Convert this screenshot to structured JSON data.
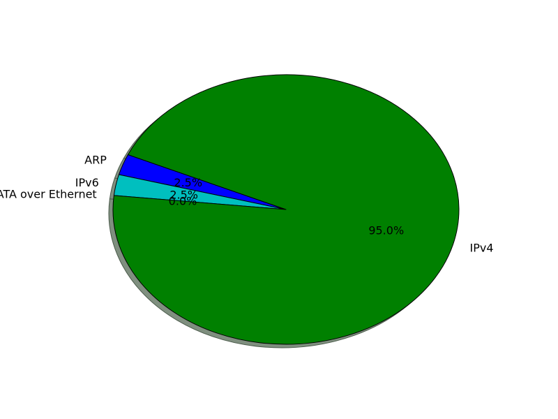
{
  "chart_data": {
    "type": "pie",
    "title": "",
    "categories": [
      "ARP",
      "IPv6",
      "ATA over Ethernet",
      "IPv4"
    ],
    "values": [
      2.5,
      2.5,
      0.0,
      95.0
    ],
    "percent_labels": [
      "2.5%",
      "2.5%",
      "0.0%",
      "95.0%"
    ],
    "colors": {
      "ARP": "#0000ff",
      "IPv6": "#00bfbf",
      "ATA over Ethernet": "#ff0000",
      "IPv4": "#008000"
    },
    "start_angle_deg": 156,
    "direction": "counterclockwise",
    "shadow": true,
    "edge_color": "#000000",
    "legend": "none"
  }
}
